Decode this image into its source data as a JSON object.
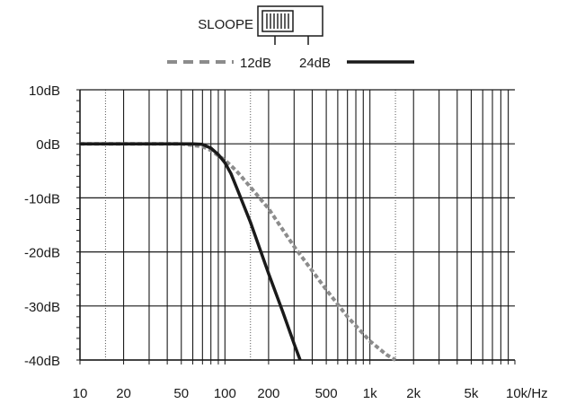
{
  "selector": {
    "label": "SLOOPE",
    "options": [
      "12dB",
      "24dB"
    ],
    "selected": "12dB"
  },
  "chart_data": {
    "type": "line",
    "title": "",
    "xlabel": "",
    "ylabel": "",
    "x_scale": "log",
    "xlim": [
      10,
      10000
    ],
    "ylim": [
      -40,
      10
    ],
    "grid": true,
    "legend_placement": "top",
    "x_tick_labels": [
      {
        "value": 10,
        "label": "10"
      },
      {
        "value": 20,
        "label": "20"
      },
      {
        "value": 50,
        "label": "50"
      },
      {
        "value": 100,
        "label": "100"
      },
      {
        "value": 200,
        "label": "200"
      },
      {
        "value": 500,
        "label": "500"
      },
      {
        "value": 1000,
        "label": "1k"
      },
      {
        "value": 2000,
        "label": "2k"
      },
      {
        "value": 5000,
        "label": "5k"
      },
      {
        "value": 10000,
        "label": "10k/Hz"
      }
    ],
    "y_tick_labels": [
      {
        "value": 10,
        "label": "10dB"
      },
      {
        "value": 0,
        "label": "0dB"
      },
      {
        "value": -10,
        "label": "-10dB"
      },
      {
        "value": -20,
        "label": "-20dB"
      },
      {
        "value": -30,
        "label": "-30dB"
      },
      {
        "value": -40,
        "label": "-40dB"
      }
    ],
    "series": [
      {
        "name": "12dB",
        "color": "#8c8c8c",
        "style": "dashed",
        "x": [
          10,
          20,
          50,
          70,
          80,
          90,
          100,
          120,
          150,
          200,
          300,
          500,
          700,
          1000,
          1300,
          1500
        ],
        "y": [
          0,
          0,
          0,
          -0.5,
          -1.2,
          -2.2,
          -3.0,
          -5.0,
          -8.0,
          -12.0,
          -19.0,
          -27.0,
          -32.0,
          -36.5,
          -39.0,
          -40.0
        ]
      },
      {
        "name": "24dB",
        "color": "#1a1a1a",
        "style": "solid",
        "x": [
          10,
          20,
          50,
          60,
          70,
          80,
          90,
          100,
          110,
          120,
          150,
          200,
          250,
          300,
          330
        ],
        "y": [
          0,
          0,
          0,
          0,
          -0.1,
          -0.8,
          -2.0,
          -3.5,
          -5.5,
          -8.0,
          -14.5,
          -24.0,
          -31.0,
          -37.0,
          -40.0
        ]
      }
    ]
  }
}
